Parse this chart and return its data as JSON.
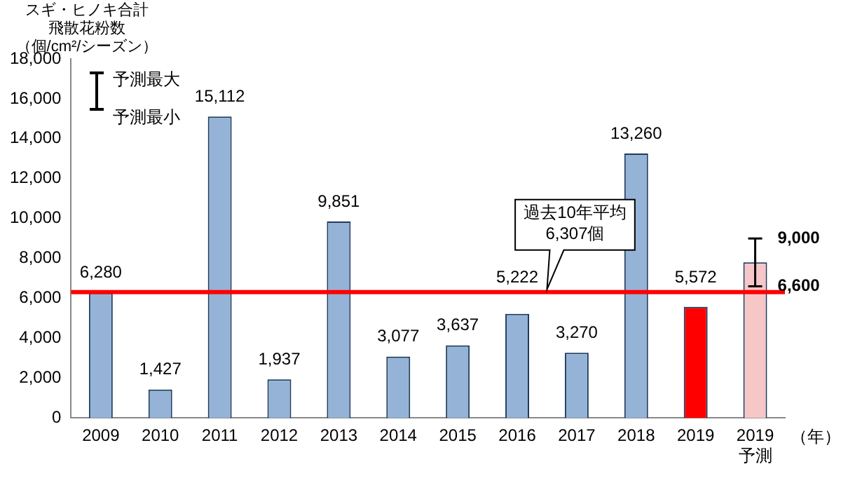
{
  "chart_data": {
    "type": "bar",
    "ylabel": "スギ・ヒノキ合計飛散花粉数（個/cm²/シーズン）",
    "xlabel": "（年）",
    "categories": [
      "2009",
      "2010",
      "2011",
      "2012",
      "2013",
      "2014",
      "2015",
      "2016",
      "2017",
      "2018",
      "2019",
      "2019\n予測"
    ],
    "values": [
      6280,
      1427,
      15112,
      1937,
      9851,
      3077,
      3637,
      5222,
      3270,
      13260,
      5572,
      7800
    ],
    "colors": [
      "#95b3d7",
      "#95b3d7",
      "#95b3d7",
      "#95b3d7",
      "#95b3d7",
      "#95b3d7",
      "#95b3d7",
      "#95b3d7",
      "#95b3d7",
      "#95b3d7",
      "#ff0000",
      "#f7c6c6"
    ],
    "value_labels": [
      "6,280",
      "1,427",
      "15,112",
      "1,937",
      "9,851",
      "3,077",
      "3,637",
      "5,222",
      "3,270",
      "13,260",
      "5,572",
      null
    ],
    "errors": [
      null,
      null,
      null,
      null,
      null,
      null,
      null,
      null,
      null,
      null,
      null,
      [
        6600,
        9000
      ]
    ],
    "ylim": [
      0,
      18000
    ],
    "yticks": [
      0,
      {
        "value": 2000,
        "label": "2,000"
      },
      {
        "value": 4000,
        "label": "4,000"
      },
      {
        "value": 6000,
        "label": "6,000"
      },
      {
        "value": 8000,
        "label": "8,000"
      },
      {
        "value": 10000,
        "label": "10,000"
      },
      {
        "value": 12000,
        "label": "12,000"
      },
      {
        "value": 14000,
        "label": "14,000"
      },
      {
        "value": 16000,
        "label": "16,000"
      },
      {
        "value": 18000,
        "label": "18,000"
      }
    ],
    "ref_lines": [
      {
        "axis": "y",
        "value": 6307,
        "label": "過去10年平均\n6,307個",
        "color": "#ff0000"
      }
    ],
    "annotations": [
      "予測最大",
      "予測最小",
      {
        "text": "9,000",
        "x": "2019\n予測",
        "y": 9000
      },
      {
        "text": "6,600",
        "x": "2019\n予測",
        "y": 6600
      }
    ],
    "grid": false,
    "legend": false
  }
}
